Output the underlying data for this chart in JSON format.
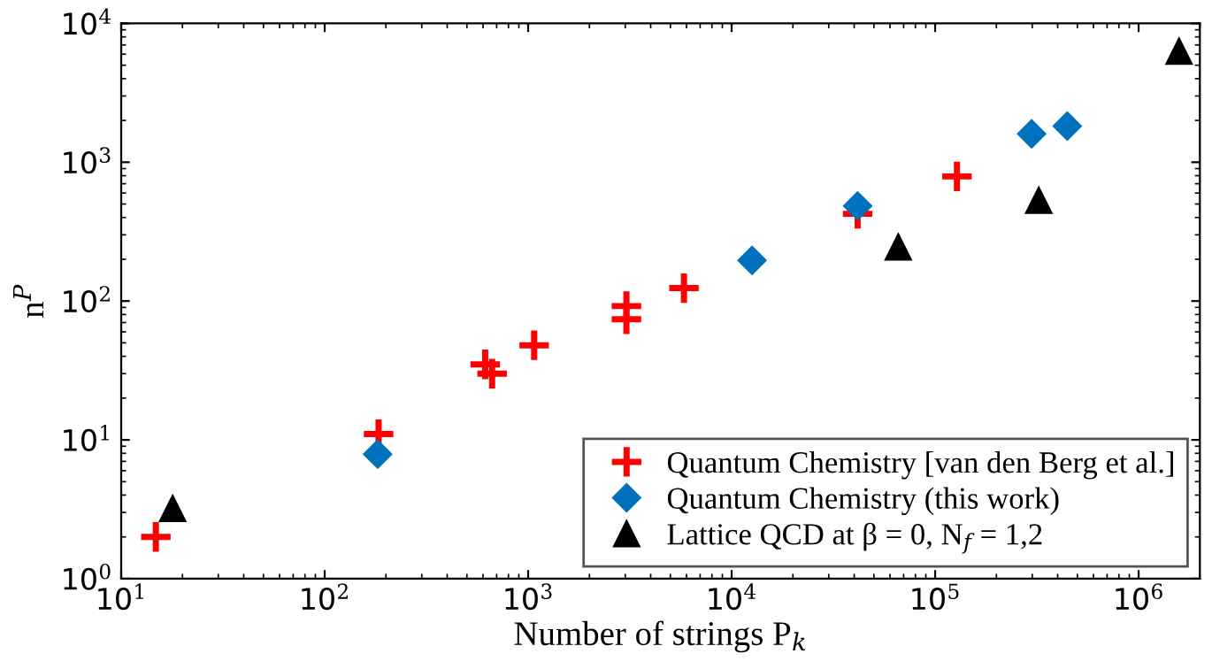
{
  "chart_data": {
    "type": "scatter",
    "xlabel": "Number of strings P$_{k}$",
    "ylabel": "n$^{P}$",
    "log": "xy",
    "grid": false,
    "legend": "bottom right",
    "xlim": [
      10,
      2000000
    ],
    "ylim": [
      1,
      10000
    ],
    "xticks": [
      {
        "value": 10,
        "label": "10$^{1}$"
      },
      {
        "value": 100,
        "label": "10$^{2}$"
      },
      {
        "value": 1000,
        "label": "10$^{3}$"
      },
      {
        "value": 10000,
        "label": "10$^{4}$"
      },
      {
        "value": 100000,
        "label": "10$^{5}$"
      },
      {
        "value": 1000000,
        "label": "10$^{6}$"
      }
    ],
    "yticks": [
      {
        "value": 1,
        "label": "10$^{0}$"
      },
      {
        "value": 10,
        "label": "10$^{1}$"
      },
      {
        "value": 100,
        "label": "10$^{2}$"
      },
      {
        "value": 1000,
        "label": "10$^{3}$"
      },
      {
        "value": 10000,
        "label": "10$^{4}$"
      }
    ],
    "series": [
      {
        "name": "Quantum Chemistry [van den Berg et al.]",
        "color": "#ff0000",
        "marker": "cross",
        "x": [
          14.8,
          184,
          615,
          665,
          1070,
          3040,
          3040,
          5830,
          41600,
          128000
        ],
        "values": [
          2.0,
          11,
          35,
          30,
          48,
          92,
          74,
          124,
          425,
          790
        ]
      },
      {
        "name": "Quantum Chemistry (this work)",
        "color": "#0072bd",
        "marker": "diamond",
        "x": [
          182,
          12600,
          41600,
          298000,
          446000
        ],
        "values": [
          7.9,
          196,
          485,
          1600,
          1820
        ]
      },
      {
        "name": "Lattice QCD at β = 0, N$_{f}$ = 1,2",
        "color": "#000000",
        "marker": "triangle",
        "x": [
          17.9,
          65900,
          323000,
          1580000
        ],
        "values": [
          3.2,
          245,
          531,
          6300
        ]
      }
    ]
  }
}
